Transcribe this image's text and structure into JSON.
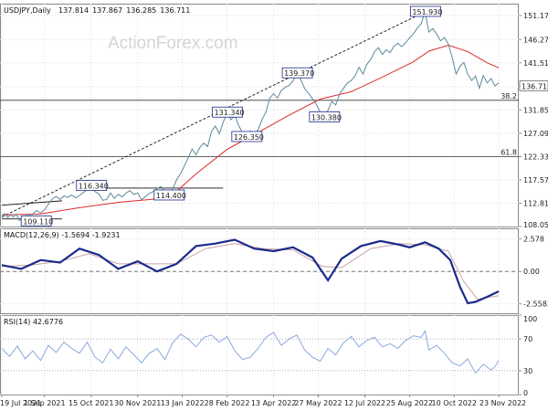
{
  "watermark": "ActionForex.com",
  "chart_data": [
    {
      "type": "line",
      "name": "price-pane",
      "title": "USDJPY,Daily",
      "ohlc": {
        "open": "137.814",
        "high": "137.867",
        "low": "136.285",
        "close": "136.711"
      },
      "ylim": [
        108.05,
        153.6
      ],
      "yticks": [
        {
          "value": 108.05,
          "label": "108.050"
        },
        {
          "value": 112.81,
          "label": "112.810"
        },
        {
          "value": 117.57,
          "label": "117.570"
        },
        {
          "value": 122.33,
          "label": "122.330"
        },
        {
          "value": 127.09,
          "label": "127.090"
        },
        {
          "value": 131.85,
          "label": "131.850"
        },
        {
          "value": 136.61,
          "label": "136.610"
        },
        {
          "value": 141.51,
          "label": "141.510"
        },
        {
          "value": 146.27,
          "label": "146.270"
        },
        {
          "value": 151.17,
          "label": "151.170"
        }
      ],
      "last_price": {
        "value": 136.711,
        "label": "136.711"
      },
      "price": [
        [
          0,
          110.3
        ],
        [
          3,
          110.7
        ],
        [
          6,
          109.9
        ],
        [
          9,
          110.4
        ],
        [
          12,
          110.0
        ],
        [
          15,
          110.6
        ],
        [
          18,
          109.3
        ],
        [
          21,
          109.6
        ],
        [
          24,
          110.2
        ],
        [
          27,
          110.6
        ],
        [
          30,
          110.1
        ],
        [
          33,
          110.9
        ],
        [
          36,
          111.3
        ],
        [
          40,
          110.8
        ],
        [
          44,
          111.5
        ],
        [
          48,
          112.6
        ],
        [
          52,
          113.7
        ],
        [
          56,
          114.2
        ],
        [
          60,
          113.6
        ],
        [
          64,
          114.3
        ],
        [
          68,
          114.0
        ],
        [
          72,
          114.5
        ],
        [
          76,
          113.9
        ],
        [
          80,
          114.4
        ],
        [
          84,
          115.0
        ],
        [
          88,
          115.6
        ],
        [
          92,
          116.34
        ],
        [
          96,
          115.2
        ],
        [
          100,
          114.7
        ],
        [
          104,
          113.4
        ],
        [
          108,
          113.6
        ],
        [
          112,
          114.9
        ],
        [
          116,
          113.8
        ],
        [
          120,
          114.6
        ],
        [
          124,
          114.1
        ],
        [
          128,
          114.9
        ],
        [
          132,
          115.4
        ],
        [
          136,
          114.6
        ],
        [
          140,
          114.9
        ],
        [
          144,
          113.5
        ],
        [
          148,
          114.2
        ],
        [
          152,
          114.8
        ],
        [
          156,
          115.2
        ],
        [
          160,
          115.8
        ],
        [
          164,
          116.2
        ],
        [
          168,
          115.3
        ],
        [
          172,
          114.6
        ],
        [
          176,
          115.7
        ],
        [
          180,
          117.6
        ],
        [
          184,
          118.8
        ],
        [
          188,
          120.4
        ],
        [
          192,
          122.1
        ],
        [
          196,
          123.9
        ],
        [
          200,
          122.7
        ],
        [
          204,
          124.2
        ],
        [
          208,
          125.1
        ],
        [
          212,
          124.4
        ],
        [
          216,
          127.5
        ],
        [
          220,
          128.6
        ],
        [
          224,
          127.0
        ],
        [
          228,
          129.3
        ],
        [
          232,
          131.34
        ],
        [
          236,
          129.9
        ],
        [
          240,
          130.7
        ],
        [
          244,
          128.7
        ],
        [
          248,
          127.2
        ],
        [
          252,
          126.35
        ],
        [
          256,
          127.6
        ],
        [
          260,
          126.8
        ],
        [
          264,
          127.8
        ],
        [
          268,
          129.9
        ],
        [
          272,
          131.4
        ],
        [
          276,
          134.3
        ],
        [
          280,
          135.2
        ],
        [
          284,
          134.3
        ],
        [
          288,
          135.9
        ],
        [
          292,
          136.5
        ],
        [
          296,
          136.9
        ],
        [
          300,
          137.8
        ],
        [
          304,
          139.37
        ],
        [
          308,
          138.1
        ],
        [
          312,
          136.2
        ],
        [
          316,
          135.3
        ],
        [
          320,
          134.2
        ],
        [
          324,
          133.0
        ],
        [
          328,
          131.5
        ],
        [
          332,
          130.38
        ],
        [
          336,
          131.8
        ],
        [
          340,
          133.6
        ],
        [
          344,
          132.9
        ],
        [
          348,
          135.1
        ],
        [
          352,
          136.3
        ],
        [
          356,
          137.4
        ],
        [
          360,
          137.9
        ],
        [
          364,
          138.9
        ],
        [
          368,
          140.6
        ],
        [
          372,
          139.2
        ],
        [
          376,
          141.2
        ],
        [
          380,
          142.2
        ],
        [
          384,
          143.8
        ],
        [
          388,
          144.6
        ],
        [
          392,
          143.2
        ],
        [
          396,
          144.2
        ],
        [
          400,
          143.6
        ],
        [
          404,
          144.9
        ],
        [
          408,
          145.5
        ],
        [
          412,
          144.8
        ],
        [
          416,
          145.6
        ],
        [
          420,
          146.6
        ],
        [
          424,
          147.4
        ],
        [
          428,
          148.6
        ],
        [
          432,
          149.5
        ],
        [
          436,
          151.93
        ],
        [
          440,
          147.8
        ],
        [
          444,
          148.5
        ],
        [
          448,
          147.4
        ],
        [
          452,
          146.0
        ],
        [
          456,
          146.7
        ],
        [
          460,
          145.3
        ],
        [
          464,
          142.6
        ],
        [
          468,
          139.2
        ],
        [
          472,
          140.8
        ],
        [
          476,
          141.6
        ],
        [
          480,
          139.2
        ],
        [
          484,
          137.9
        ],
        [
          488,
          138.8
        ],
        [
          492,
          136.3
        ],
        [
          496,
          138.9
        ],
        [
          500,
          137.4
        ],
        [
          504,
          138.3
        ],
        [
          508,
          136.8
        ],
        [
          512,
          137.4
        ]
      ],
      "ma": [
        [
          0,
          110.4
        ],
        [
          40,
          110.6
        ],
        [
          80,
          111.9
        ],
        [
          120,
          113.0
        ],
        [
          160,
          113.7
        ],
        [
          176,
          114.5
        ],
        [
          200,
          118.8
        ],
        [
          232,
          123.8
        ],
        [
          264,
          127.3
        ],
        [
          296,
          130.8
        ],
        [
          328,
          134.1
        ],
        [
          360,
          135.6
        ],
        [
          392,
          138.6
        ],
        [
          424,
          141.7
        ],
        [
          440,
          143.9
        ],
        [
          460,
          145.1
        ],
        [
          480,
          143.8
        ],
        [
          500,
          141.5
        ],
        [
          512,
          140.5
        ]
      ],
      "trendline": [
        [
          0,
          110.0
        ],
        [
          436,
          151.93
        ]
      ],
      "rect_line": [
        [
          0,
          112.4
        ],
        [
          62,
          113.3
        ]
      ],
      "resistance_line": [
        [
          92,
          115.9
        ],
        [
          228,
          115.9
        ]
      ],
      "hlines": [
        {
          "value": 133.85,
          "label": "38.2"
        },
        {
          "value": 122.33,
          "label": "61.8"
        }
      ],
      "price_labels": [
        {
          "x": 35,
          "value": 109.11,
          "label": "109.110"
        },
        {
          "x": 92,
          "value": 116.34,
          "label": "116.340"
        },
        {
          "x": 172,
          "value": 114.4,
          "label": "114.400"
        },
        {
          "x": 232,
          "value": 131.34,
          "label": "131.340"
        },
        {
          "x": 252,
          "value": 126.35,
          "label": "126.350"
        },
        {
          "x": 304,
          "value": 139.37,
          "label": "139.370"
        },
        {
          "x": 332,
          "value": 130.38,
          "label": "130.380"
        },
        {
          "x": 436,
          "value": 151.93,
          "label": "151.930"
        }
      ]
    },
    {
      "type": "line",
      "name": "macd-pane",
      "title": "MACD(12,26,9) -1.5694 -1.9231",
      "ylim": [
        -3.3,
        3.4
      ],
      "yticks": [
        {
          "value": 2.578,
          "label": "2.578"
        },
        {
          "value": 0.0,
          "label": "0.00"
        },
        {
          "value": -2.5583,
          "label": "-2.5583"
        }
      ],
      "macd": [
        [
          0,
          0.5
        ],
        [
          20,
          0.2
        ],
        [
          40,
          0.9
        ],
        [
          60,
          0.7
        ],
        [
          80,
          1.8
        ],
        [
          100,
          1.3
        ],
        [
          120,
          0.2
        ],
        [
          140,
          0.8
        ],
        [
          160,
          0.0
        ],
        [
          180,
          0.6
        ],
        [
          200,
          2.0
        ],
        [
          220,
          2.2
        ],
        [
          240,
          2.5
        ],
        [
          260,
          1.8
        ],
        [
          280,
          1.6
        ],
        [
          300,
          1.9
        ],
        [
          320,
          1.1
        ],
        [
          336,
          -0.7
        ],
        [
          350,
          1.0
        ],
        [
          370,
          2.0
        ],
        [
          390,
          2.4
        ],
        [
          410,
          2.1
        ],
        [
          420,
          1.9
        ],
        [
          436,
          2.3
        ],
        [
          450,
          1.8
        ],
        [
          462,
          0.9
        ],
        [
          472,
          -1.2
        ],
        [
          480,
          -2.5
        ],
        [
          488,
          -2.4
        ],
        [
          500,
          -2.0
        ],
        [
          512,
          -1.57
        ]
      ],
      "signal": [
        [
          0,
          0.4
        ],
        [
          30,
          0.5
        ],
        [
          60,
          0.8
        ],
        [
          90,
          1.4
        ],
        [
          120,
          0.6
        ],
        [
          150,
          0.6
        ],
        [
          180,
          0.6
        ],
        [
          210,
          1.8
        ],
        [
          240,
          2.2
        ],
        [
          270,
          1.8
        ],
        [
          300,
          1.7
        ],
        [
          330,
          0.4
        ],
        [
          350,
          0.3
        ],
        [
          380,
          1.8
        ],
        [
          410,
          2.2
        ],
        [
          436,
          2.1
        ],
        [
          460,
          1.6
        ],
        [
          476,
          -0.8
        ],
        [
          490,
          -2.2
        ],
        [
          512,
          -1.92
        ]
      ]
    },
    {
      "type": "line",
      "name": "rsi-pane",
      "title": "RSI(14) 42.6776",
      "ylim": [
        0,
        100
      ],
      "yticks": [
        {
          "value": 100,
          "label": "100"
        },
        {
          "value": 70,
          "label": "70"
        },
        {
          "value": 30,
          "label": "30"
        },
        {
          "value": 0,
          "label": "0"
        }
      ],
      "rsi": [
        [
          0,
          58
        ],
        [
          8,
          48
        ],
        [
          16,
          61
        ],
        [
          24,
          45
        ],
        [
          32,
          55
        ],
        [
          40,
          43
        ],
        [
          48,
          62
        ],
        [
          56,
          53
        ],
        [
          64,
          66
        ],
        [
          72,
          58
        ],
        [
          80,
          52
        ],
        [
          88,
          66
        ],
        [
          96,
          47
        ],
        [
          104,
          40
        ],
        [
          112,
          57
        ],
        [
          120,
          45
        ],
        [
          128,
          60
        ],
        [
          136,
          50
        ],
        [
          144,
          40
        ],
        [
          152,
          52
        ],
        [
          160,
          58
        ],
        [
          168,
          44
        ],
        [
          176,
          65
        ],
        [
          184,
          76
        ],
        [
          192,
          70
        ],
        [
          200,
          60
        ],
        [
          208,
          72
        ],
        [
          216,
          75
        ],
        [
          224,
          66
        ],
        [
          232,
          73
        ],
        [
          240,
          55
        ],
        [
          248,
          44
        ],
        [
          256,
          47
        ],
        [
          264,
          58
        ],
        [
          272,
          72
        ],
        [
          280,
          78
        ],
        [
          288,
          62
        ],
        [
          296,
          70
        ],
        [
          304,
          75
        ],
        [
          312,
          56
        ],
        [
          320,
          47
        ],
        [
          328,
          42
        ],
        [
          336,
          58
        ],
        [
          344,
          50
        ],
        [
          352,
          65
        ],
        [
          360,
          73
        ],
        [
          368,
          60
        ],
        [
          376,
          68
        ],
        [
          384,
          72
        ],
        [
          392,
          60
        ],
        [
          400,
          64
        ],
        [
          408,
          58
        ],
        [
          416,
          68
        ],
        [
          424,
          74
        ],
        [
          432,
          72
        ],
        [
          436,
          80
        ],
        [
          440,
          56
        ],
        [
          448,
          62
        ],
        [
          456,
          52
        ],
        [
          464,
          40
        ],
        [
          472,
          36
        ],
        [
          480,
          45
        ],
        [
          488,
          27
        ],
        [
          496,
          38
        ],
        [
          504,
          31
        ],
        [
          508,
          35
        ],
        [
          512,
          43
        ]
      ]
    }
  ],
  "x_axis": {
    "range": [
      0,
      512
    ],
    "ticks": [
      {
        "x": 0,
        "label": "19 Jul 2021"
      },
      {
        "x": 44,
        "label": "1 Sep 2021"
      },
      {
        "x": 92,
        "label": "15 Oct 2021"
      },
      {
        "x": 140,
        "label": "30 Nov 2021"
      },
      {
        "x": 186,
        "label": "13 Jan 2022"
      },
      {
        "x": 232,
        "label": "28 Feb 2022"
      },
      {
        "x": 280,
        "label": "13 Apr 2022"
      },
      {
        "x": 326,
        "label": "27 May 2022"
      },
      {
        "x": 374,
        "label": "12 Jul 2022"
      },
      {
        "x": 420,
        "label": "25 Aug 2022"
      },
      {
        "x": 466,
        "label": "10 Oct 2022"
      },
      {
        "x": 512,
        "label": "23 Nov 2022"
      }
    ]
  },
  "colors": {
    "price": "#5e8a9c",
    "ma": "#e0292b",
    "macd": "#1b2a8c",
    "signal": "#c9a3a3",
    "rsi": "#8aa8dd",
    "label_border": "#1b2a8c",
    "label_text": "#1b2a8c",
    "grid": "#dedede",
    "hline": "#333333"
  }
}
